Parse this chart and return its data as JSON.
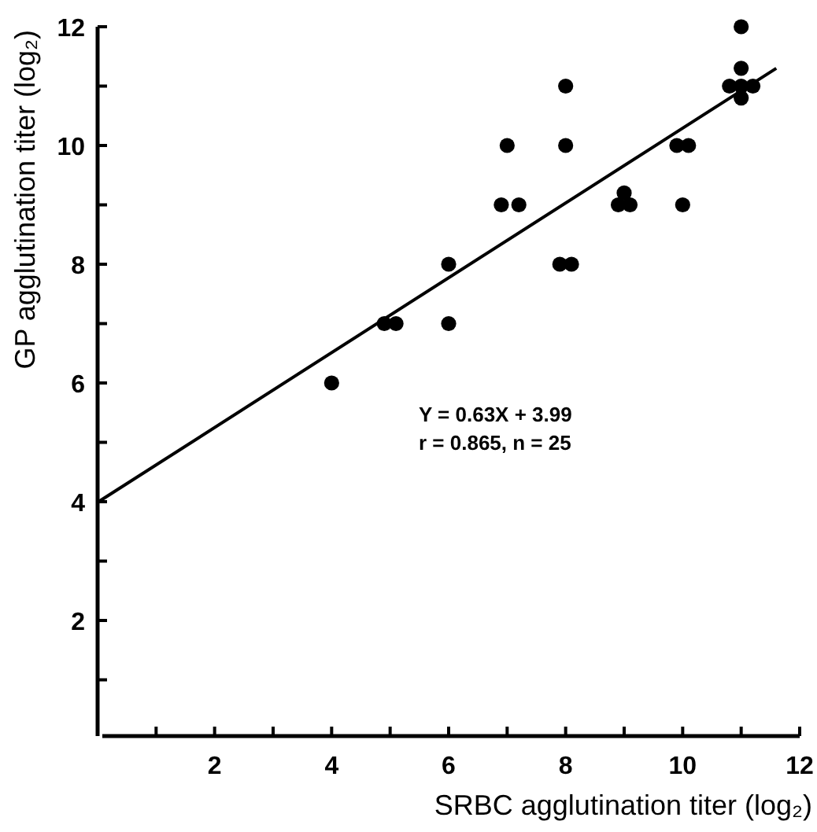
{
  "chart_data": {
    "type": "scatter",
    "xlabel": "SRBC agglutination titer (log₂)",
    "ylabel": "GP agglutination titer (log₂)",
    "xlim": [
      0,
      12
    ],
    "ylim": [
      0,
      12
    ],
    "xticks": [
      {
        "value": 1,
        "label": null
      },
      2,
      {
        "value": 3,
        "label": null
      },
      4,
      {
        "value": 5,
        "label": null
      },
      6,
      {
        "value": 7,
        "label": null
      },
      8,
      {
        "value": 9,
        "label": null
      },
      10,
      {
        "value": 11,
        "label": null
      },
      12
    ],
    "yticks": [
      {
        "value": 1,
        "label": null
      },
      2,
      {
        "value": 3,
        "label": null
      },
      4,
      {
        "value": 5,
        "label": null
      },
      6,
      {
        "value": 7,
        "label": null
      },
      8,
      {
        "value": 9,
        "label": null
      },
      10,
      {
        "value": 11,
        "label": null
      },
      12
    ],
    "grid": false,
    "marker": "circle",
    "annotations": [
      "Y = 0.63X + 3.99",
      "r = 0.865,  n = 25"
    ],
    "series": [
      {
        "color": "#000000",
        "x": [
          4,
          4.9,
          5.1,
          6,
          6,
          7,
          6.9,
          7.2,
          8,
          8,
          7.9,
          8.1,
          8.9,
          9,
          9.1,
          9.9,
          10.1,
          10,
          11,
          10.8,
          11,
          11,
          11.2,
          11
        ],
        "values": [
          6,
          7,
          7,
          8,
          7,
          10,
          9,
          9,
          11,
          10,
          8,
          8,
          9,
          9.2,
          9,
          10,
          10,
          9,
          12,
          11,
          11.3,
          11,
          11,
          10.8
        ]
      },
      {
        "type": "line",
        "color": "#000000",
        "marker": "none",
        "line_style": "solid",
        "x": [
          0,
          11.6
        ],
        "values": [
          3.99,
          11.3
        ]
      }
    ]
  }
}
